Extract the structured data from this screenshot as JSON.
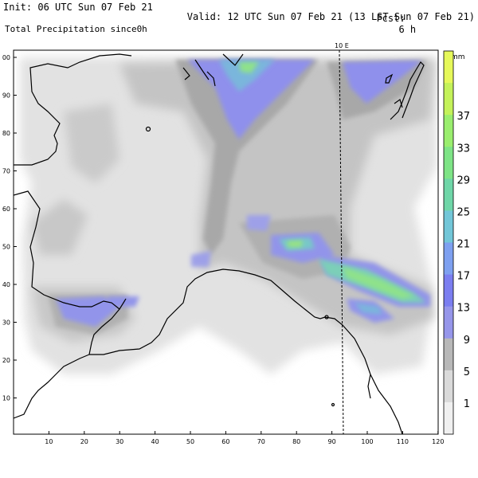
{
  "header": {
    "init": "Init: 06 UTC Sun 07 Feb 21",
    "fcst_label": "Fcst:",
    "fcst_value": "6 h",
    "valid": "Valid: 12 UTC Sun 07 Feb 21 (13 LST Sun 07 Feb 21)",
    "product": "Total Precipitation since0h"
  },
  "map": {
    "meridian_label": "10 E",
    "x_ticks": [
      "10",
      "20",
      "30",
      "40",
      "50",
      "60",
      "70",
      "80",
      "90",
      "100",
      "110",
      "120"
    ],
    "y_ticks": [
      "10",
      "20",
      "30",
      "40",
      "50",
      "60",
      "70",
      "80",
      "90",
      "00"
    ]
  },
  "legend": {
    "unit": "mm",
    "labels": [
      "1",
      "5",
      "9",
      "13",
      "17",
      "21",
      "25",
      "29",
      "33",
      "37"
    ],
    "colors": [
      "#f0f0f0",
      "#dadada",
      "#b8b8b8",
      "#9696ea",
      "#7b7ef0",
      "#7ea0f0",
      "#72c6d8",
      "#6fd6a8",
      "#7ee486",
      "#9aee6e",
      "#c4f25a",
      "#e6f85a"
    ]
  },
  "colors": {
    "land_fill": "#dcdcdc",
    "coast": "#000000"
  }
}
